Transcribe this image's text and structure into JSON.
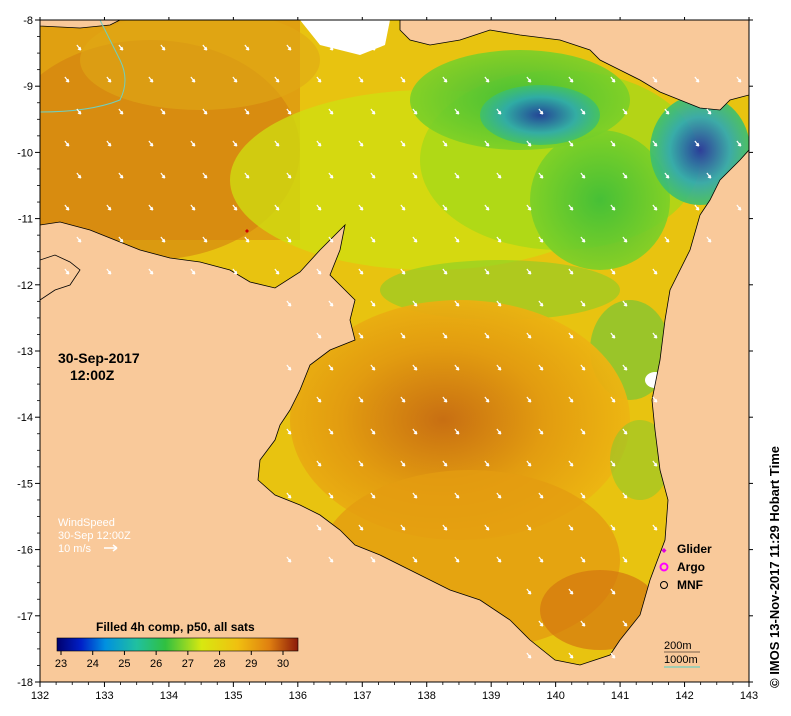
{
  "map": {
    "lon_ticks": [
      "132",
      "133",
      "134",
      "135",
      "136",
      "137",
      "138",
      "139",
      "140",
      "141",
      "142",
      "143"
    ],
    "lat_ticks": [
      "-8",
      "-9",
      "-10",
      "-11",
      "-12",
      "-13",
      "-14",
      "-15",
      "-16",
      "-17",
      "-18"
    ],
    "lon_range": [
      132,
      143
    ],
    "lat_range": [
      -8,
      -18
    ]
  },
  "date_label": {
    "date": "30-Sep-2017",
    "time": "12:00Z"
  },
  "wind_legend": {
    "title": "WindSpeed",
    "time": "30-Sep 12:00Z",
    "scale": "10 m/s"
  },
  "colorbar": {
    "title": "Filled 4h comp, p50, all sats",
    "ticks": [
      "23",
      "24",
      "25",
      "26",
      "27",
      "28",
      "29",
      "30"
    ],
    "range": [
      23,
      30
    ]
  },
  "symbol_legend": [
    {
      "label": "Glider",
      "color": "#dd00dd"
    },
    {
      "label": "Argo",
      "color": "#ff00ff"
    },
    {
      "label": "MNF",
      "color": "#000000"
    }
  ],
  "contour_legend": {
    "line1": "200m",
    "line2": "1000m"
  },
  "credit": "© IMOS 13-Nov-2017 11:29 Hobart Time",
  "colors": {
    "land": "#f9c99a",
    "hot": "#b4560b",
    "warm": "#e9a10b",
    "mid": "#d9e80c",
    "cool": "#2fc23d",
    "cold": "#1a2fa8",
    "contour": "#6fd0c0"
  }
}
